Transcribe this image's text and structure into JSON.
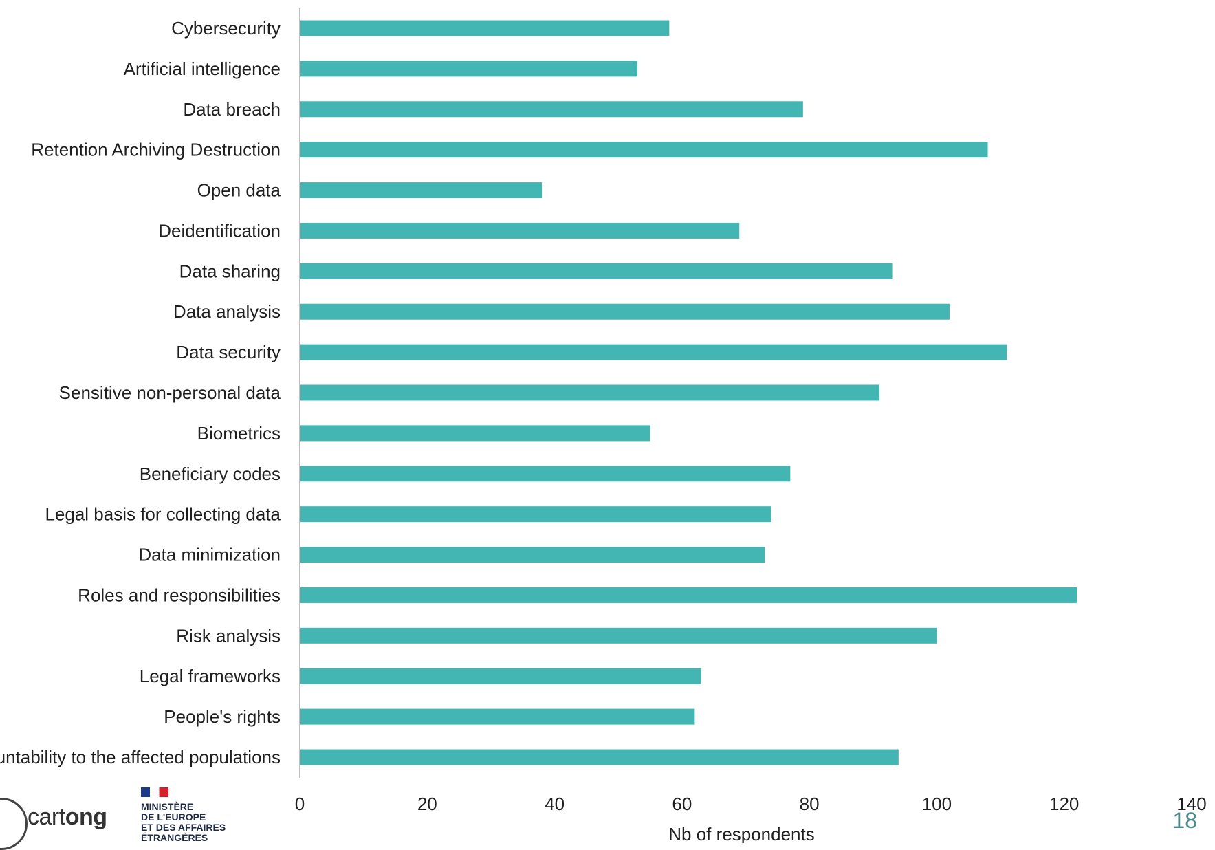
{
  "chart_data": {
    "type": "bar",
    "orientation": "horizontal",
    "categories": [
      "Cybersecurity",
      "Artificial intelligence",
      "Data breach",
      "Retention Archiving Destruction",
      "Open data",
      "Deidentification",
      "Data sharing",
      "Data analysis",
      "Data security",
      "Sensitive non-personal data",
      "Biometrics",
      "Beneficiary codes",
      "Legal basis for collecting  data",
      "Data minimization",
      "Roles and responsibilities",
      "Risk analysis",
      "Legal frameworks",
      "People's rights",
      "Accountability to the affected populations"
    ],
    "values": [
      58,
      53,
      79,
      108,
      38,
      69,
      93,
      102,
      111,
      91,
      55,
      77,
      74,
      73,
      122,
      100,
      63,
      62,
      94
    ],
    "xlabel": "Nb of respondents",
    "ylabel": "",
    "title": "",
    "xlim": [
      0,
      140
    ],
    "xticks": [
      0,
      20,
      40,
      60,
      80,
      100,
      120,
      140
    ],
    "bar_color": "#43b5b3",
    "grid": false,
    "legend": "none"
  },
  "footer": {
    "page_number": "18",
    "logo_text_light": "cart",
    "logo_text_bold": "ong",
    "ministry_lines": [
      "MINISTÈRE",
      "DE L'EUROPE",
      "ET DES AFFAIRES",
      "ÉTRANGÈRES"
    ]
  }
}
